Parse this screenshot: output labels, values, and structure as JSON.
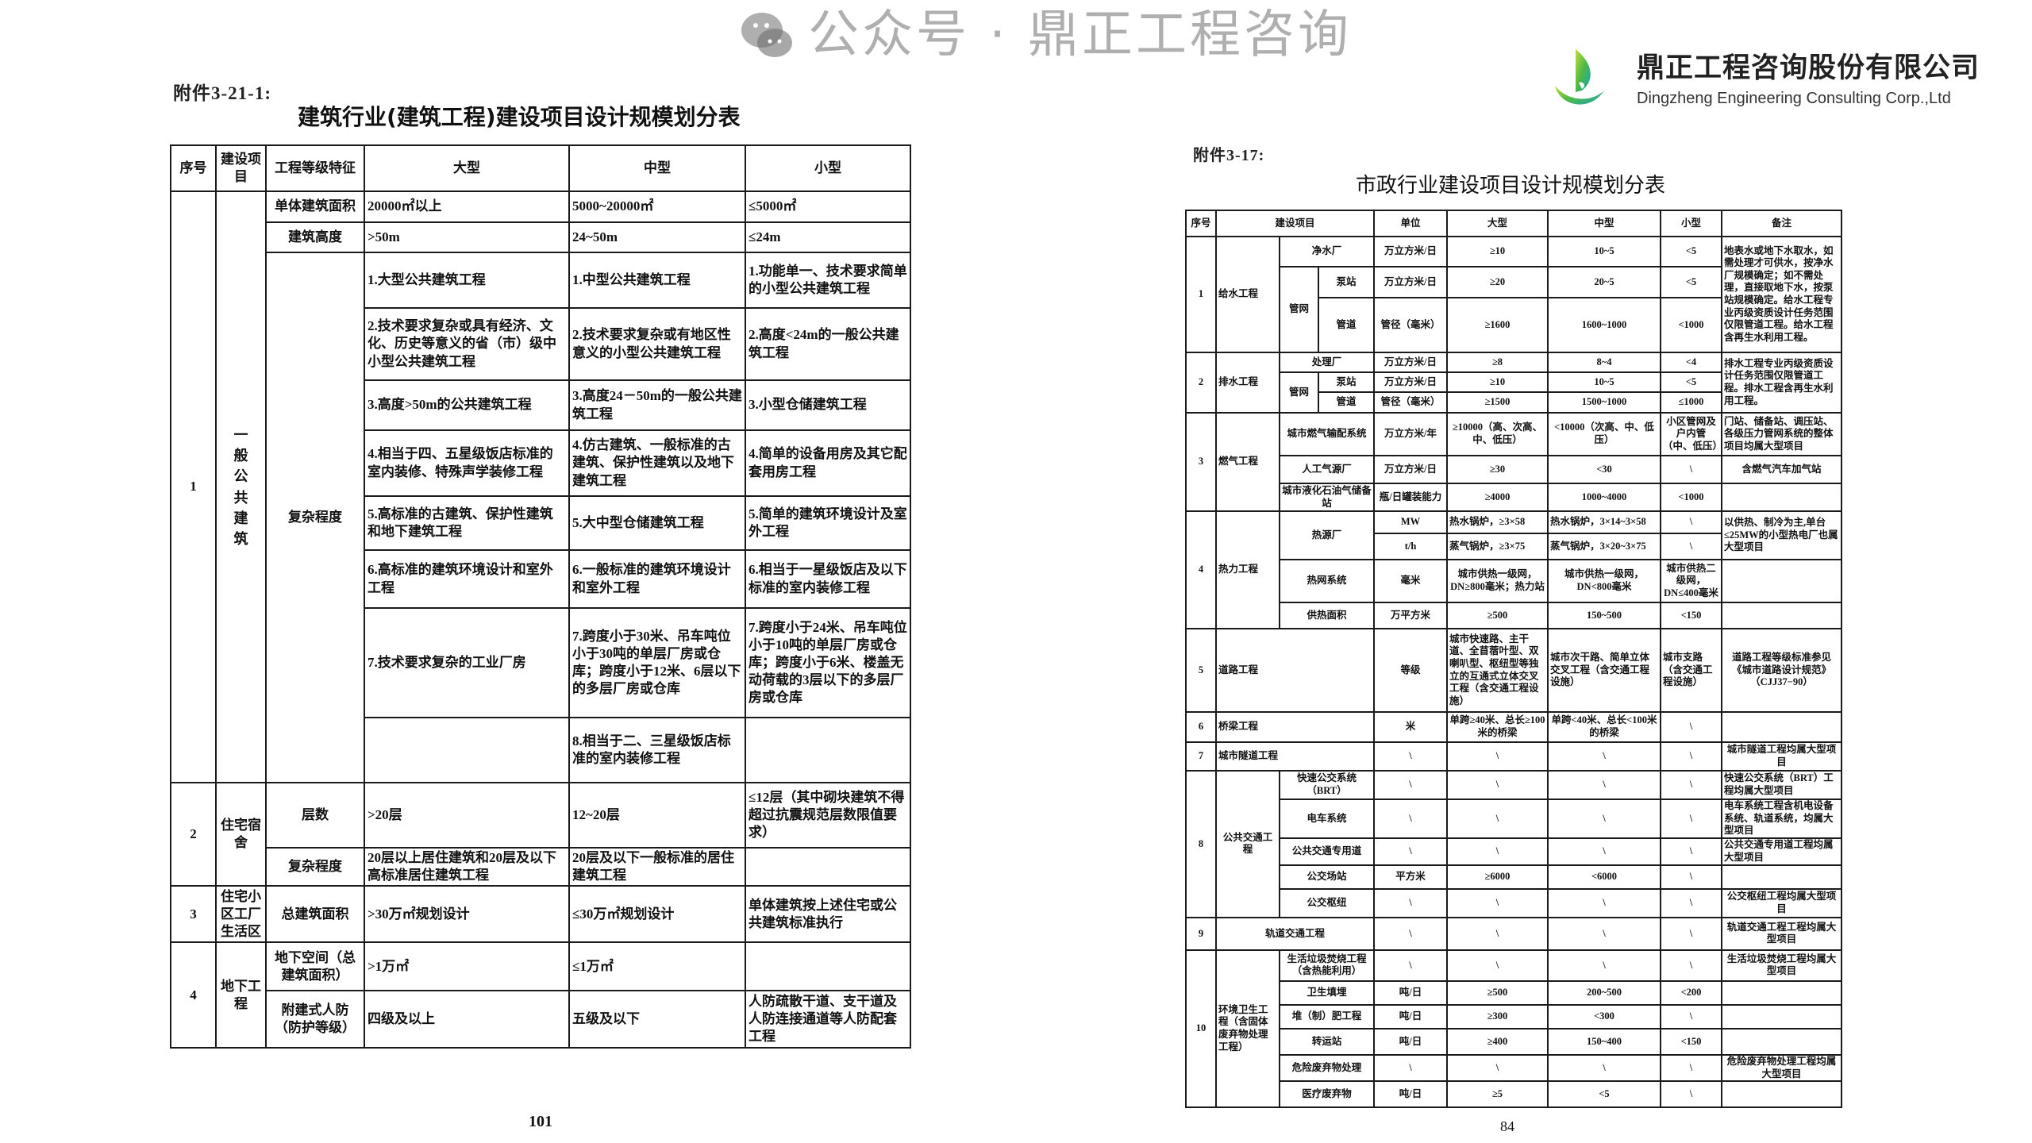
{
  "logo": {
    "name_cn": "鼎正工程咨询股份有限公司",
    "name_en": "Dingzheng Engineering Consulting Corp.,Ltd",
    "colors": {
      "green": "#8cc63f",
      "teal": "#1aa3b8"
    }
  },
  "watermark": {
    "text": "公众号 · 鼎正工程咨询",
    "icon": "wechat-icon"
  },
  "left_doc": {
    "annex": "附件3-21-1:",
    "title": "建筑行业(建筑工程)建设项目设计规模划分表",
    "page_number": "101",
    "table": {
      "rows": [
        [
          {
            "t": "序号"
          },
          {
            "t": "建设项目"
          },
          {
            "t": "工程等级特征"
          },
          {
            "t": "大型"
          },
          {
            "t": "中型"
          },
          {
            "t": "小型"
          }
        ],
        [
          {
            "t": "1",
            "rs": 10
          },
          {
            "t": "一般公共建筑",
            "rs": 10
          },
          {
            "t": "单体建筑面积"
          },
          {
            "t": "20000㎡以上",
            "a": "l"
          },
          {
            "t": "5000~20000㎡",
            "a": "l"
          },
          {
            "t": "≤5000㎡",
            "a": "l"
          }
        ],
        [
          {
            "t": "建筑高度"
          },
          {
            "t": ">50m",
            "a": "l"
          },
          {
            "t": "24~50m",
            "a": "l"
          },
          {
            "t": "≤24m",
            "a": "l"
          }
        ],
        [
          {
            "t": "复杂程度",
            "rs": 8
          },
          {
            "t": "1.大型公共建筑工程",
            "a": "l"
          },
          {
            "t": "1.中型公共建筑工程",
            "a": "l"
          },
          {
            "t": "1.功能单一、技术要求简单的小型公共建筑工程",
            "a": "l"
          }
        ],
        [
          {
            "t": "2.技术要求复杂或具有经济、文化、历史等意义的省（市）级中小型公共建筑工程",
            "a": "l"
          },
          {
            "t": "2.技术要求复杂或有地区性意义的小型公共建筑工程",
            "a": "l"
          },
          {
            "t": "2.高度<24m的一般公共建筑工程",
            "a": "l"
          }
        ],
        [
          {
            "t": "3.高度>50m的公共建筑工程",
            "a": "l"
          },
          {
            "t": "3.高度24－50m的一般公共建筑工程",
            "a": "l"
          },
          {
            "t": "3.小型仓储建筑工程",
            "a": "l"
          }
        ],
        [
          {
            "t": "4.相当于四、五星级饭店标准的室内装修、特殊声学装修工程",
            "a": "l"
          },
          {
            "t": "4.仿古建筑、一般标准的古建筑、保护性建筑以及地下建筑工程",
            "a": "l"
          },
          {
            "t": "4.简单的设备用房及其它配套用房工程",
            "a": "l"
          }
        ],
        [
          {
            "t": "5.高标准的古建筑、保护性建筑和地下建筑工程",
            "a": "l"
          },
          {
            "t": "5.大中型仓储建筑工程",
            "a": "l"
          },
          {
            "t": "5.简单的建筑环境设计及室外工程",
            "a": "l"
          }
        ],
        [
          {
            "t": "6.高标准的建筑环境设计和室外工程",
            "a": "l"
          },
          {
            "t": "6.一般标准的建筑环境设计和室外工程",
            "a": "l"
          },
          {
            "t": "6.相当于一星级饭店及以下标准的室内装修工程",
            "a": "l"
          }
        ],
        [
          {
            "t": "7.技术要求复杂的工业厂房",
            "a": "l"
          },
          {
            "t": "7.跨度小于30米、吊车吨位小于30吨的单层厂房或仓库；跨度小于12米、6层以下的多层厂房或仓库",
            "a": "l"
          },
          {
            "t": "7.跨度小于24米、吊车吨位小于10吨的单层厂房或仓库；跨度小于6米、楼盖无动荷载的3层以下的多层厂房或仓库",
            "a": "l"
          }
        ],
        [
          {
            "t": "",
            "a": "l"
          },
          {
            "t": "8.相当于二、三星级饭店标准的室内装修工程",
            "a": "l"
          },
          {
            "t": "",
            "a": "l"
          }
        ],
        [
          {
            "t": "2",
            "rs": 2
          },
          {
            "t": "住宅宿舍",
            "rs": 2
          },
          {
            "t": "层数"
          },
          {
            "t": ">20层",
            "a": "l"
          },
          {
            "t": "12~20层",
            "a": "l"
          },
          {
            "t": "≤12层（其中砌块建筑不得超过抗震规范层数限值要求）",
            "a": "l"
          }
        ],
        [
          {
            "t": "复杂程度"
          },
          {
            "t": "20层以上居住建筑和20层及以下高标准居住建筑工程",
            "a": "l"
          },
          {
            "t": "20层及以下一般标准的居住建筑工程",
            "a": "l"
          },
          {
            "t": "",
            "a": "l"
          }
        ],
        [
          {
            "t": "3"
          },
          {
            "t": "住宅小区工厂生活区"
          },
          {
            "t": "总建筑面积"
          },
          {
            "t": ">30万㎡规划设计",
            "a": "l"
          },
          {
            "t": "≤30万㎡规划设计",
            "a": "l"
          },
          {
            "t": "单体建筑按上述住宅或公共建筑标准执行",
            "a": "l"
          }
        ],
        [
          {
            "t": "4",
            "rs": 2
          },
          {
            "t": "地下工程",
            "rs": 2
          },
          {
            "t": "地下空间（总建筑面积）"
          },
          {
            "t": ">1万㎡",
            "a": "l"
          },
          {
            "t": "≤1万㎡",
            "a": "l"
          },
          {
            "t": "",
            "a": "l"
          }
        ],
        [
          {
            "t": "附建式人防（防护等级）"
          },
          {
            "t": "四级及以上",
            "a": "l"
          },
          {
            "t": "五级及以下",
            "a": "l"
          },
          {
            "t": "人防疏散干道、支干道及人防连接通道等人防配套工程",
            "a": "l"
          }
        ]
      ]
    }
  },
  "right_doc": {
    "annex": "附件3-17:",
    "title": "市政行业建设项目设计规模划分表",
    "page_number": "84",
    "table": {
      "rows": [
        [
          {
            "t": "序号"
          },
          {
            "t": "建设项目",
            "cs": 3
          },
          {
            "t": "单位"
          },
          {
            "t": "大型"
          },
          {
            "t": "中型"
          },
          {
            "t": "小型"
          },
          {
            "t": "备注"
          }
        ],
        [
          {
            "t": "1",
            "rs": 3
          },
          {
            "t": "给水工程",
            "rs": 3,
            "a": "l"
          },
          {
            "t": "净水厂",
            "cs": 2
          },
          {
            "t": "万立方米/日"
          },
          {
            "t": "≥10"
          },
          {
            "t": "10~5"
          },
          {
            "t": "<5"
          },
          {
            "t": "地表水或地下水取水，如需处理才可供水，按净水厂规模确定；如不需处理，直接取地下水，按泵站规模确定。给水工程专业丙级资质设计任务范围仅限管道工程。给水工程含再生水利用工程。",
            "rs": 3,
            "a": "l"
          }
        ],
        [
          {
            "t": "管网",
            "rs": 2
          },
          {
            "t": "泵站"
          },
          {
            "t": "万立方米/日"
          },
          {
            "t": "≥20"
          },
          {
            "t": "20~5"
          },
          {
            "t": "<5"
          }
        ],
        [
          {
            "t": "管道"
          },
          {
            "t": "管径（毫米）"
          },
          {
            "t": "≥1600"
          },
          {
            "t": "1600~1000"
          },
          {
            "t": "<1000"
          }
        ],
        [
          {
            "t": "2",
            "rs": 3
          },
          {
            "t": "排水工程",
            "rs": 3,
            "a": "l"
          },
          {
            "t": "处理厂",
            "cs": 2
          },
          {
            "t": "万立方米/日"
          },
          {
            "t": "≥8"
          },
          {
            "t": "8~4"
          },
          {
            "t": "<4"
          },
          {
            "t": "排水工程专业丙级资质设计任务范围仅限管道工程。排水工程含再生水利用工程。",
            "rs": 3,
            "a": "l"
          }
        ],
        [
          {
            "t": "管网",
            "rs": 2
          },
          {
            "t": "泵站"
          },
          {
            "t": "万立方米/日"
          },
          {
            "t": "≥10"
          },
          {
            "t": "10~5"
          },
          {
            "t": "<5"
          }
        ],
        [
          {
            "t": "管道"
          },
          {
            "t": "管径（毫米）"
          },
          {
            "t": "≥1500"
          },
          {
            "t": "1500~1000"
          },
          {
            "t": "≤1000"
          }
        ],
        [
          {
            "t": "3",
            "rs": 3
          },
          {
            "t": "燃气工程",
            "rs": 3,
            "a": "l"
          },
          {
            "t": "城市燃气输配系统",
            "cs": 2
          },
          {
            "t": "万立方米/年"
          },
          {
            "t": "≥10000（高、次高、中、低压）"
          },
          {
            "t": "<10000（次高、中、低压）"
          },
          {
            "t": "小区管网及户内管（中、低压）"
          },
          {
            "t": "门站、储备站、调压站、各级压力管网系统的整体项目均属大型项目",
            "a": "l"
          }
        ],
        [
          {
            "t": "人工气源厂",
            "cs": 2
          },
          {
            "t": "万立方米/日"
          },
          {
            "t": "≥30"
          },
          {
            "t": "<30"
          },
          {
            "t": "\\"
          },
          {
            "t": "含燃气汽车加气站"
          }
        ],
        [
          {
            "t": "城市液化石油气储备站",
            "cs": 2
          },
          {
            "t": "瓶/日罐装能力"
          },
          {
            "t": "≥4000"
          },
          {
            "t": "1000~4000"
          },
          {
            "t": "<1000"
          },
          {
            "t": ""
          }
        ],
        [
          {
            "t": "4",
            "rs": 4
          },
          {
            "t": "热力工程",
            "rs": 4,
            "a": "l"
          },
          {
            "t": "热源厂",
            "cs": 2,
            "rs": 2
          },
          {
            "t": "MW"
          },
          {
            "t": "热水锅炉，≥3×58",
            "a": "l"
          },
          {
            "t": "热水锅炉，3×14~3×58",
            "a": "l"
          },
          {
            "t": "\\"
          },
          {
            "t": "以供热、制冷为主,单台≤25MW的小型热电厂也属大型项目",
            "rs": 2,
            "a": "l"
          }
        ],
        [
          {
            "t": "t/h"
          },
          {
            "t": "蒸气锅炉，≥3×75",
            "a": "l"
          },
          {
            "t": "蒸气锅炉，3×20~3×75",
            "a": "l"
          },
          {
            "t": "\\"
          }
        ],
        [
          {
            "t": "热网系统",
            "cs": 2
          },
          {
            "t": "毫米"
          },
          {
            "t": "城市供热一级网，DN≥800毫米；热力站"
          },
          {
            "t": "城市供热一级网，DN<800毫米"
          },
          {
            "t": "城市供热二级网，DN≤400毫米"
          },
          {
            "t": ""
          }
        ],
        [
          {
            "t": "供热面积",
            "cs": 2
          },
          {
            "t": "万平方米"
          },
          {
            "t": "≥500"
          },
          {
            "t": "150~500"
          },
          {
            "t": "<150"
          },
          {
            "t": ""
          }
        ],
        [
          {
            "t": "5"
          },
          {
            "t": "道路工程",
            "cs": 3,
            "a": "l"
          },
          {
            "t": "等级"
          },
          {
            "t": "城市快速路、主干道、全苜蓿叶型、双喇叭型、枢纽型等独立的互通式立体交叉工程（含交通工程设施）",
            "a": "l"
          },
          {
            "t": "城市次干路、简单立体交叉工程（含交通工程设施）",
            "a": "l"
          },
          {
            "t": "城市支路（含交通工程设施）",
            "a": "l"
          },
          {
            "t": "道路工程等级标准参见《城市道路设计规范》（CJJ37−90）"
          }
        ],
        [
          {
            "t": "6"
          },
          {
            "t": "桥梁工程",
            "cs": 3,
            "a": "l"
          },
          {
            "t": "米"
          },
          {
            "t": "单跨≥40米、总长≥100米的桥梁"
          },
          {
            "t": "单跨<40米、总长<100米的桥梁"
          },
          {
            "t": "\\"
          },
          {
            "t": ""
          }
        ],
        [
          {
            "t": "7"
          },
          {
            "t": "城市隧道工程",
            "cs": 3,
            "a": "l"
          },
          {
            "t": "\\"
          },
          {
            "t": "\\"
          },
          {
            "t": "\\"
          },
          {
            "t": "\\"
          },
          {
            "t": "城市隧道工程均属大型项目"
          }
        ],
        [
          {
            "t": "8",
            "rs": 5
          },
          {
            "t": "公共交通工程",
            "rs": 5
          },
          {
            "t": "快速公交系统（BRT）",
            "cs": 2
          },
          {
            "t": "\\"
          },
          {
            "t": "\\"
          },
          {
            "t": "\\"
          },
          {
            "t": "\\"
          },
          {
            "t": "快速公交系统（BRT）工程均属大型项目",
            "a": "l"
          }
        ],
        [
          {
            "t": "电车系统",
            "cs": 2
          },
          {
            "t": "\\"
          },
          {
            "t": "\\"
          },
          {
            "t": "\\"
          },
          {
            "t": "\\"
          },
          {
            "t": "电车系统工程含机电设备系统、轨道系统，均属大型项目",
            "a": "l"
          }
        ],
        [
          {
            "t": "公共交通专用道",
            "cs": 2
          },
          {
            "t": "\\"
          },
          {
            "t": "\\"
          },
          {
            "t": "\\"
          },
          {
            "t": "\\"
          },
          {
            "t": "公共交通专用道工程均属大型项目",
            "a": "l"
          }
        ],
        [
          {
            "t": "公交场站",
            "cs": 2
          },
          {
            "t": "平方米"
          },
          {
            "t": "≥6000"
          },
          {
            "t": "<6000"
          },
          {
            "t": "\\"
          },
          {
            "t": ""
          }
        ],
        [
          {
            "t": "公交枢纽",
            "cs": 2
          },
          {
            "t": "\\"
          },
          {
            "t": "\\"
          },
          {
            "t": "\\"
          },
          {
            "t": "\\"
          },
          {
            "t": "公交枢纽工程均属大型项目"
          }
        ],
        [
          {
            "t": "9"
          },
          {
            "t": "轨道交通工程",
            "cs": 3
          },
          {
            "t": "\\"
          },
          {
            "t": "\\"
          },
          {
            "t": "\\"
          },
          {
            "t": "\\"
          },
          {
            "t": "轨道交通工程工程均属大型项目"
          }
        ],
        [
          {
            "t": "10",
            "rs": 6
          },
          {
            "t": "环境卫生工程（含固体废弃物处理工程）",
            "rs": 6,
            "a": "l"
          },
          {
            "t": "生活垃圾焚烧工程（含热能利用）",
            "cs": 2
          },
          {
            "t": "\\"
          },
          {
            "t": "\\"
          },
          {
            "t": "\\"
          },
          {
            "t": "\\"
          },
          {
            "t": "生活垃圾焚烧工程均属大型项目"
          }
        ],
        [
          {
            "t": "卫生填埋",
            "cs": 2
          },
          {
            "t": "吨/日"
          },
          {
            "t": "≥500"
          },
          {
            "t": "200~500"
          },
          {
            "t": "<200"
          },
          {
            "t": ""
          }
        ],
        [
          {
            "t": "堆（制）肥工程",
            "cs": 2
          },
          {
            "t": "吨/日"
          },
          {
            "t": "≥300"
          },
          {
            "t": "<300"
          },
          {
            "t": "\\"
          },
          {
            "t": ""
          }
        ],
        [
          {
            "t": "转运站",
            "cs": 2
          },
          {
            "t": "吨/日"
          },
          {
            "t": "≥400"
          },
          {
            "t": "150~400"
          },
          {
            "t": "<150"
          },
          {
            "t": ""
          }
        ],
        [
          {
            "t": "危险废弃物处理",
            "cs": 2
          },
          {
            "t": "\\"
          },
          {
            "t": "\\"
          },
          {
            "t": "\\"
          },
          {
            "t": "\\"
          },
          {
            "t": "危险废弃物处理工程均属大型项目"
          }
        ],
        [
          {
            "t": "医疗废弃物",
            "cs": 2
          },
          {
            "t": "吨/日"
          },
          {
            "t": "≥5"
          },
          {
            "t": "<5"
          },
          {
            "t": "\\"
          },
          {
            "t": ""
          }
        ]
      ]
    }
  }
}
